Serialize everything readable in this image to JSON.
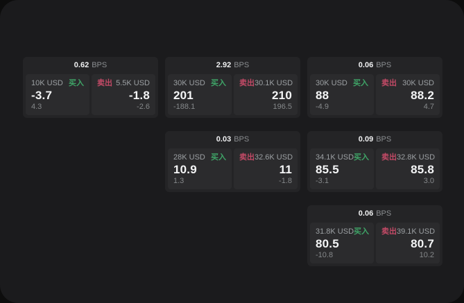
{
  "labels": {
    "buy": "买入",
    "sell": "卖出",
    "bps_unit": "BPS"
  },
  "colors": {
    "buy_green": "#3fa467",
    "sell_red": "#c24a66",
    "panel_bg": "#1b1b1d",
    "card_bg": "#242426",
    "pane_bg": "#2b2b2d"
  },
  "cards": [
    {
      "bps": "0.62",
      "buy_size": "10K USD",
      "buy_value": "-3.7",
      "buy_sub": "4.3",
      "sell_size": "5.5K USD",
      "sell_value": "-1.8",
      "sell_sub": "-2.6"
    },
    {
      "bps": "2.92",
      "buy_size": "30K USD",
      "buy_value": "201",
      "buy_sub": "-188.1",
      "sell_size": "30.1K USD",
      "sell_value": "210",
      "sell_sub": "196.5"
    },
    {
      "bps": "0.06",
      "buy_size": "30K USD",
      "buy_value": "88",
      "buy_sub": "-4.9",
      "sell_size": "30K USD",
      "sell_value": "88.2",
      "sell_sub": "4.7"
    },
    {
      "bps": "0.03",
      "buy_size": "28K USD",
      "buy_value": "10.9",
      "buy_sub": "1.3",
      "sell_size": "32.6K USD",
      "sell_value": "11",
      "sell_sub": "-1.8"
    },
    {
      "bps": "0.09",
      "buy_size": "34.1K USD",
      "buy_value": "85.5",
      "buy_sub": "-3.1",
      "sell_size": "32.8K USD",
      "sell_value": "85.8",
      "sell_sub": "3.0"
    },
    {
      "bps": "0.06",
      "buy_size": "31.8K USD",
      "buy_value": "80.5",
      "buy_sub": "-10.8",
      "sell_size": "39.1K USD",
      "sell_value": "80.7",
      "sell_sub": "10.2"
    }
  ]
}
